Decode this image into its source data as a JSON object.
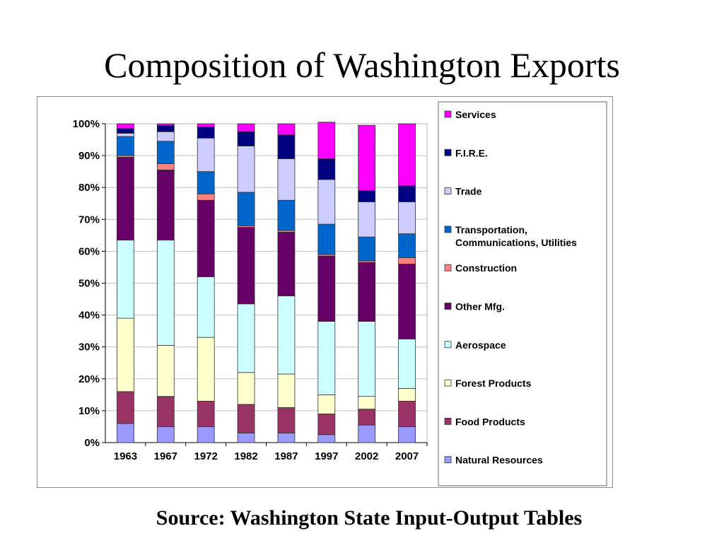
{
  "slide": {
    "title": "Composition of Washington Exports",
    "source": "Source: Washington State Input-Output Tables"
  },
  "chart_data": {
    "type": "bar",
    "stacked": true,
    "percent": true,
    "categories": [
      "1963",
      "1967",
      "1972",
      "1982",
      "1987",
      "1997",
      "2002",
      "2007"
    ],
    "y_ticks": [
      "0%",
      "10%",
      "20%",
      "30%",
      "40%",
      "50%",
      "60%",
      "70%",
      "80%",
      "90%",
      "100%"
    ],
    "ylim": [
      0,
      100
    ],
    "grid": true,
    "legend_position": "right",
    "series": [
      {
        "name": "Natural Resources",
        "color": "#9999ff",
        "values": [
          6,
          5,
          5,
          3,
          3,
          2.5,
          5.5,
          5
        ]
      },
      {
        "name": "Food Products",
        "color": "#993366",
        "values": [
          10,
          9.5,
          8,
          9,
          8,
          6.5,
          5,
          8
        ]
      },
      {
        "name": "Forest Products",
        "color": "#ffffcc",
        "values": [
          23,
          16,
          20,
          10,
          10.5,
          6,
          4,
          4
        ]
      },
      {
        "name": "Aerospace",
        "color": "#ccffff",
        "values": [
          24.5,
          33,
          19,
          21.5,
          24.5,
          23,
          23.5,
          15.5
        ]
      },
      {
        "name": "Other Mfg.",
        "color": "#660066",
        "values": [
          26,
          22,
          24,
          24,
          20,
          20.5,
          18.5,
          23.5
        ]
      },
      {
        "name": "Construction",
        "color": "#ff8080",
        "values": [
          0.5,
          2,
          2,
          0.5,
          0.5,
          0.5,
          0.5,
          2
        ]
      },
      {
        "name": "Transportation, Communications, Utilities",
        "color": "#0066cc",
        "values": [
          6,
          7,
          7,
          10.5,
          9.5,
          9.5,
          7.5,
          7.5
        ]
      },
      {
        "name": "Trade",
        "color": "#ccccff",
        "values": [
          1,
          3,
          10.5,
          14.5,
          13,
          14,
          11,
          10
        ]
      },
      {
        "name": "F.I.R.E.",
        "color": "#000080",
        "values": [
          1.5,
          2,
          3.5,
          4.5,
          7.5,
          6.5,
          3.5,
          5
        ]
      },
      {
        "name": "Services",
        "color": "#ff00ff",
        "values": [
          1.5,
          0.5,
          1,
          2.5,
          3.5,
          11.5,
          20.5,
          19.5
        ]
      }
    ],
    "legend_order": [
      {
        "name": "Services",
        "lines": [
          "Services"
        ]
      },
      {
        "name": "F.I.R.E.",
        "lines": [
          "F.I.R.E."
        ]
      },
      {
        "name": "Trade",
        "lines": [
          "Trade"
        ]
      },
      {
        "name": "Transportation, Communications, Utilities",
        "lines": [
          "Transportation,",
          "Communications, Utilities"
        ]
      },
      {
        "name": "Construction",
        "lines": [
          "Construction"
        ]
      },
      {
        "name": "Other Mfg.",
        "lines": [
          "Other Mfg."
        ]
      },
      {
        "name": "Aerospace",
        "lines": [
          "Aerospace"
        ]
      },
      {
        "name": "Forest Products",
        "lines": [
          "Forest Products"
        ]
      },
      {
        "name": "Food Products",
        "lines": [
          "Food Products"
        ]
      },
      {
        "name": "Natural Resources",
        "lines": [
          "Natural Resources"
        ]
      }
    ]
  }
}
